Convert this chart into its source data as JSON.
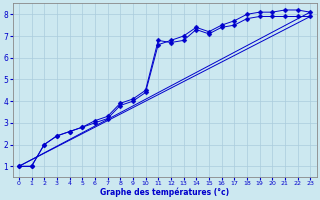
{
  "title": "",
  "xlabel": "Graphe des températures (°c)",
  "ylabel": "",
  "bg_color": "#cce8f0",
  "line_color": "#0000cc",
  "grid_color": "#aaccdd",
  "xlim": [
    -0.5,
    23.5
  ],
  "ylim": [
    0.5,
    8.5
  ],
  "xticks": [
    0,
    1,
    2,
    3,
    4,
    5,
    6,
    7,
    8,
    9,
    10,
    11,
    12,
    13,
    14,
    15,
    16,
    17,
    18,
    19,
    20,
    21,
    22,
    23
  ],
  "yticks": [
    1,
    2,
    3,
    4,
    5,
    6,
    7,
    8
  ],
  "series": [
    {
      "x": [
        0,
        23
      ],
      "y": [
        1.0,
        7.9
      ],
      "marker": null,
      "markersize": 0
    },
    {
      "x": [
        0,
        23
      ],
      "y": [
        1.0,
        8.1
      ],
      "marker": null,
      "markersize": 0
    },
    {
      "x": [
        0,
        1,
        2,
        3,
        4,
        5,
        6,
        7,
        8,
        9,
        10,
        11,
        12,
        13,
        14,
        15,
        16,
        17,
        18,
        19,
        20,
        21,
        22,
        23
      ],
      "y": [
        1.0,
        1.0,
        2.0,
        2.4,
        2.6,
        2.8,
        3.1,
        3.3,
        3.9,
        4.1,
        4.5,
        6.8,
        6.7,
        6.8,
        7.3,
        7.1,
        7.4,
        7.5,
        7.8,
        7.9,
        7.9,
        7.9,
        7.9,
        7.9
      ],
      "marker": "D",
      "markersize": 2.5
    },
    {
      "x": [
        0,
        1,
        2,
        3,
        4,
        5,
        6,
        7,
        8,
        9,
        10,
        11,
        12,
        13,
        14,
        15,
        16,
        17,
        18,
        19,
        20,
        21,
        22,
        23
      ],
      "y": [
        1.0,
        1.0,
        2.0,
        2.4,
        2.6,
        2.8,
        3.0,
        3.2,
        3.8,
        4.0,
        4.4,
        6.6,
        6.8,
        7.0,
        7.4,
        7.2,
        7.5,
        7.7,
        8.0,
        8.1,
        8.1,
        8.2,
        8.2,
        8.1
      ],
      "marker": "D",
      "markersize": 2.5
    }
  ]
}
